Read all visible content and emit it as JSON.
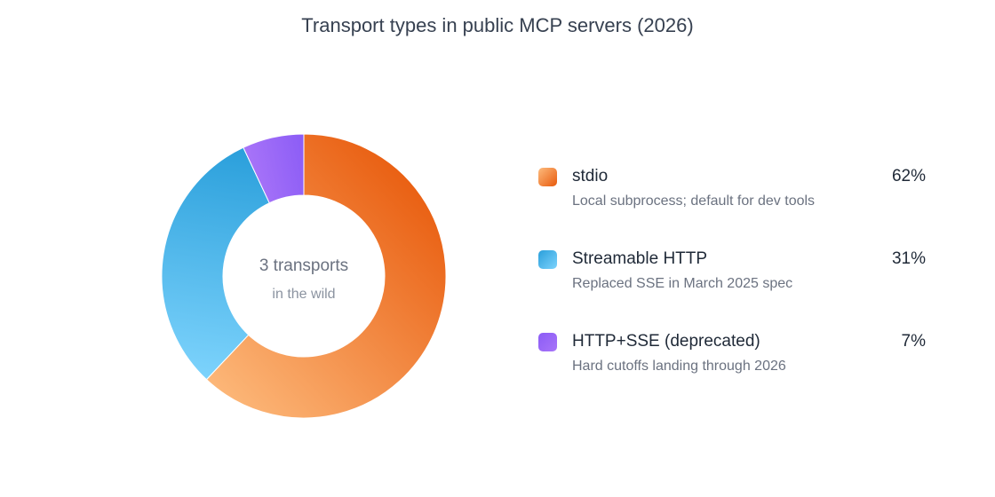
{
  "chart_data": {
    "type": "pie",
    "title": "Transport types in public MCP servers (2026)",
    "center_text": "3 transports",
    "center_subtext": "in the wild",
    "unit": "%",
    "legend_position": "right",
    "slices": [
      {
        "name": "stdio",
        "value": 62,
        "pct_label": "62%",
        "description": "Local subprocess; default for dev tools",
        "color": "#f07a2e",
        "gradient": [
          "#e85a0c",
          "#fdbb7d"
        ]
      },
      {
        "name": "Streamable HTTP",
        "value": 31,
        "pct_label": "31%",
        "description": "Replaced SSE in March 2025 spec",
        "color": "#38aee8",
        "gradient": [
          "#7dd3fc",
          "#2a9fdb"
        ]
      },
      {
        "name": "HTTP+SSE (deprecated)",
        "value": 7,
        "pct_label": "7%",
        "description": "Hard cutoffs landing through 2026",
        "color": "#9a63f2",
        "gradient": [
          "#a874f8",
          "#8b5cf6"
        ]
      }
    ]
  }
}
